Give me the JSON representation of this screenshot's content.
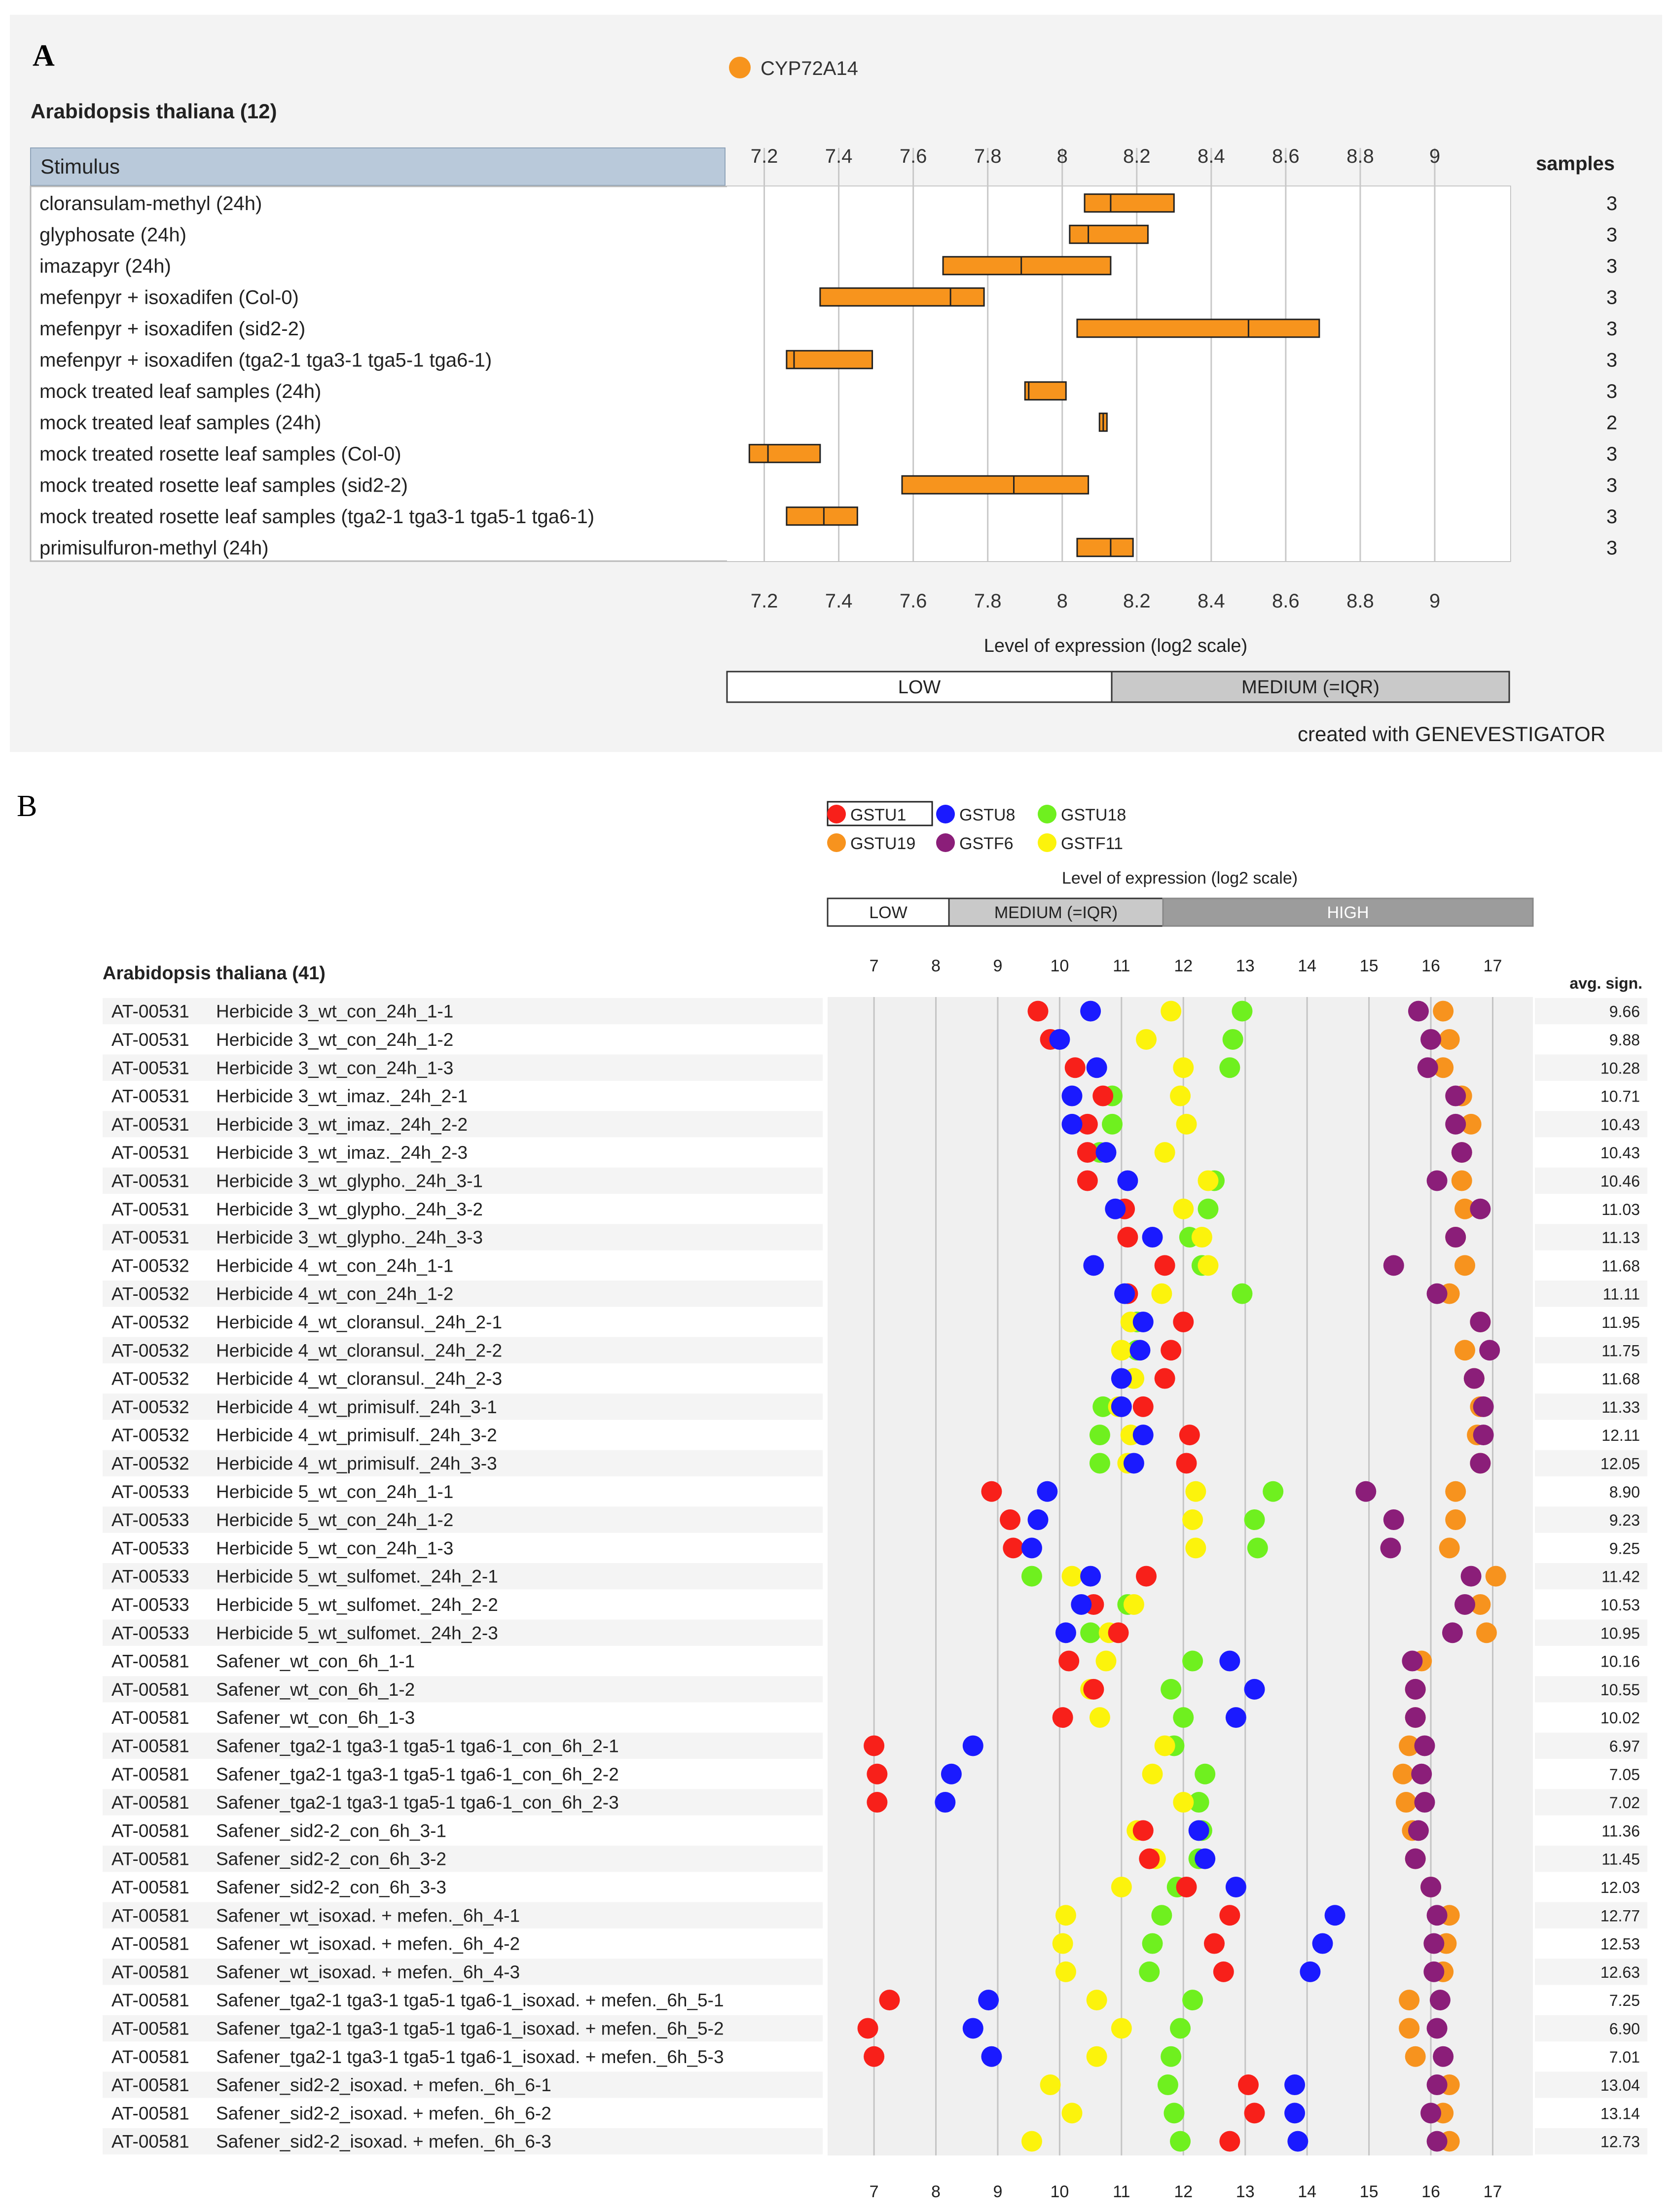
{
  "panel_a": {
    "letter": "A",
    "legend": {
      "label": "CYP72A14",
      "color": "#f7941d"
    },
    "species": "Arabidopsis thaliana (12)",
    "column_header": "Stimulus",
    "samples_header": "samples",
    "xlabel": "Level of expression (log2 scale)",
    "level_bar": {
      "low": "LOW",
      "medium": "MEDIUM (=IQR)"
    },
    "credit": "created with GENEVESTIGATOR"
  },
  "panel_b": {
    "letter": "B",
    "species": "Arabidopsis thaliana (41)",
    "avg_header": "avg. sign.",
    "xlabel": "Level of expression (log2 scale)",
    "level_bar": {
      "low": "LOW",
      "medium": "MEDIUM (=IQR)",
      "high": "HIGH"
    }
  },
  "chart_data": [
    {
      "type": "boxplot",
      "title": "CYP72A14",
      "xlabel": "Level of expression (log2 scale)",
      "xlim": [
        7.1,
        9.2
      ],
      "xticks": [
        "7.2",
        "7.4",
        "7.6",
        "7.8",
        "8",
        "8.2",
        "8.4",
        "8.6",
        "8.8",
        "9"
      ],
      "series_color": "#f7941d",
      "rows": [
        {
          "label": "cloransulam-methyl (24h)",
          "q1": 8.06,
          "median": 8.13,
          "q3": 8.3,
          "samples": "3"
        },
        {
          "label": "glyphosate (24h)",
          "q1": 8.02,
          "median": 8.07,
          "q3": 8.23,
          "samples": "3"
        },
        {
          "label": "imazapyr (24h)",
          "q1": 7.68,
          "median": 7.89,
          "q3": 8.13,
          "samples": "3"
        },
        {
          "label": "mefenpyr + isoxadifen (Col-0)",
          "q1": 7.35,
          "median": 7.7,
          "q3": 7.79,
          "samples": "3"
        },
        {
          "label": "mefenpyr + isoxadifen (sid2-2)",
          "q1": 8.04,
          "median": 8.5,
          "q3": 8.69,
          "samples": "3"
        },
        {
          "label": "mefenpyr + isoxadifen (tga2-1 tga3-1 tga5-1 tga6-1)",
          "q1": 7.26,
          "median": 7.28,
          "q3": 7.49,
          "samples": "3"
        },
        {
          "label": "mock treated leaf samples (24h)",
          "q1": 7.9,
          "median": 7.91,
          "q3": 8.01,
          "samples": "3"
        },
        {
          "label": "mock treated leaf samples (24h)",
          "q1": 8.1,
          "median": 8.11,
          "q3": 8.12,
          "samples": "2"
        },
        {
          "label": "mock treated rosette leaf samples (Col-0)",
          "q1": 7.16,
          "median": 7.21,
          "q3": 7.35,
          "samples": "3"
        },
        {
          "label": "mock treated rosette leaf samples (sid2-2)",
          "q1": 7.57,
          "median": 7.87,
          "q3": 8.07,
          "samples": "3"
        },
        {
          "label": "mock treated rosette leaf samples (tga2-1 tga3-1 tga5-1 tga6-1)",
          "q1": 7.26,
          "median": 7.36,
          "q3": 7.45,
          "samples": "3"
        },
        {
          "label": "primisulfuron-methyl (24h)",
          "q1": 8.04,
          "median": 8.13,
          "q3": 8.19,
          "samples": "3"
        }
      ]
    },
    {
      "type": "scatter",
      "xlabel": "Level of expression (log2 scale)",
      "xlim": [
        6.25,
        17.65
      ],
      "xticks": [
        "7",
        "8",
        "9",
        "10",
        "11",
        "12",
        "13",
        "14",
        "15",
        "16",
        "17"
      ],
      "series": [
        {
          "name": "GSTU1",
          "color": "#f8201a"
        },
        {
          "name": "GSTU8",
          "color": "#1a1aff"
        },
        {
          "name": "GSTU18",
          "color": "#6ff01f"
        },
        {
          "name": "GSTU19",
          "color": "#f7931e"
        },
        {
          "name": "GSTF6",
          "color": "#8b1e79"
        },
        {
          "name": "GSTF11",
          "color": "#fcf30c"
        }
      ],
      "rows": [
        {
          "id": "AT-00531",
          "name": "Herbicide 3_wt_con_24h_1-1",
          "avg": "9.66",
          "values": [
            9.65,
            10.5,
            12.95,
            16.2,
            15.8,
            11.8
          ]
        },
        {
          "id": "AT-00531",
          "name": "Herbicide 3_wt_con_24h_1-2",
          "avg": "9.88",
          "values": [
            9.85,
            10.0,
            12.8,
            16.3,
            16.0,
            11.4
          ]
        },
        {
          "id": "AT-00531",
          "name": "Herbicide 3_wt_con_24h_1-3",
          "avg": "10.28",
          "values": [
            10.25,
            10.6,
            12.75,
            16.2,
            15.95,
            12.0
          ]
        },
        {
          "id": "AT-00531",
          "name": "Herbicide 3_wt_imaz._24h_2-1",
          "avg": "10.71",
          "values": [
            10.7,
            10.2,
            10.85,
            16.5,
            16.4,
            11.95
          ]
        },
        {
          "id": "AT-00531",
          "name": "Herbicide 3_wt_imaz._24h_2-2",
          "avg": "10.43",
          "values": [
            10.45,
            10.2,
            10.85,
            16.65,
            16.4,
            12.05
          ]
        },
        {
          "id": "AT-00531",
          "name": "Herbicide 3_wt_imaz._24h_2-3",
          "avg": "10.43",
          "values": [
            10.45,
            10.75,
            10.65,
            16.5,
            16.5,
            11.7
          ]
        },
        {
          "id": "AT-00531",
          "name": "Herbicide 3_wt_glypho._24h_3-1",
          "avg": "10.46",
          "values": [
            10.45,
            11.1,
            12.5,
            16.5,
            16.1,
            12.4
          ]
        },
        {
          "id": "AT-00531",
          "name": "Herbicide 3_wt_glypho._24h_3-2",
          "avg": "11.03",
          "values": [
            11.05,
            10.9,
            12.4,
            16.55,
            16.8,
            12.0
          ]
        },
        {
          "id": "AT-00531",
          "name": "Herbicide 3_wt_glypho._24h_3-3",
          "avg": "11.13",
          "values": [
            11.1,
            11.5,
            12.1,
            16.4,
            16.4,
            12.3
          ]
        },
        {
          "id": "AT-00532",
          "name": "Herbicide 4_wt_con_24h_1-1",
          "avg": "11.68",
          "values": [
            11.7,
            10.55,
            12.3,
            16.55,
            15.4,
            12.4
          ]
        },
        {
          "id": "AT-00532",
          "name": "Herbicide 4_wt_con_24h_1-2",
          "avg": "11.11",
          "values": [
            11.1,
            11.05,
            12.95,
            16.3,
            16.1,
            11.65
          ]
        },
        {
          "id": "AT-00532",
          "name": "Herbicide 4_wt_cloransul._24h_2-1",
          "avg": "11.95",
          "values": [
            12.0,
            11.35,
            11.25,
            16.8,
            16.8,
            11.15
          ]
        },
        {
          "id": "AT-00532",
          "name": "Herbicide 4_wt_cloransul._24h_2-2",
          "avg": "11.75",
          "values": [
            11.8,
            11.3,
            11.25,
            16.55,
            16.95,
            11.0
          ]
        },
        {
          "id": "AT-00532",
          "name": "Herbicide 4_wt_cloransul._24h_2-3",
          "avg": "11.68",
          "values": [
            11.7,
            11.0,
            11.2,
            16.7,
            16.7,
            11.2
          ]
        },
        {
          "id": "AT-00532",
          "name": "Herbicide 4_wt_primisulf._24h_3-1",
          "avg": "11.33",
          "values": [
            11.35,
            11.0,
            10.7,
            16.8,
            16.85,
            10.95
          ]
        },
        {
          "id": "AT-00532",
          "name": "Herbicide 4_wt_primisulf._24h_3-2",
          "avg": "12.11",
          "values": [
            12.1,
            11.35,
            10.65,
            16.75,
            16.85,
            11.15
          ]
        },
        {
          "id": "AT-00532",
          "name": "Herbicide 4_wt_primisulf._24h_3-3",
          "avg": "12.05",
          "values": [
            12.05,
            11.2,
            10.65,
            16.8,
            16.8,
            11.1
          ]
        },
        {
          "id": "AT-00533",
          "name": "Herbicide 5_wt_con_24h_1-1",
          "avg": "8.90",
          "values": [
            8.9,
            9.8,
            13.45,
            16.4,
            14.95,
            12.2
          ]
        },
        {
          "id": "AT-00533",
          "name": "Herbicide 5_wt_con_24h_1-2",
          "avg": "9.23",
          "values": [
            9.2,
            9.65,
            13.15,
            16.4,
            15.4,
            12.15
          ]
        },
        {
          "id": "AT-00533",
          "name": "Herbicide 5_wt_con_24h_1-3",
          "avg": "9.25",
          "values": [
            9.25,
            9.55,
            13.2,
            16.3,
            15.35,
            12.2
          ]
        },
        {
          "id": "AT-00533",
          "name": "Herbicide 5_wt_sulfomet._24h_2-1",
          "avg": "11.42",
          "values": [
            11.4,
            10.5,
            9.55,
            17.05,
            16.65,
            10.2
          ]
        },
        {
          "id": "AT-00533",
          "name": "Herbicide 5_wt_sulfomet._24h_2-2",
          "avg": "10.53",
          "values": [
            10.55,
            10.35,
            11.1,
            16.8,
            16.55,
            11.2
          ]
        },
        {
          "id": "AT-00533",
          "name": "Herbicide 5_wt_sulfomet._24h_2-3",
          "avg": "10.95",
          "values": [
            10.95,
            10.1,
            10.5,
            16.9,
            16.35,
            10.8
          ]
        },
        {
          "id": "AT-00581",
          "name": "Safener_wt_con_6h_1-1",
          "avg": "10.16",
          "values": [
            10.15,
            12.75,
            12.15,
            15.85,
            15.7,
            10.75
          ]
        },
        {
          "id": "AT-00581",
          "name": "Safener_wt_con_6h_1-2",
          "avg": "10.55",
          "values": [
            10.55,
            13.15,
            11.8,
            15.75,
            15.75,
            10.5
          ]
        },
        {
          "id": "AT-00581",
          "name": "Safener_wt_con_6h_1-3",
          "avg": "10.02",
          "values": [
            10.05,
            12.85,
            12.0,
            15.75,
            15.75,
            10.65
          ]
        },
        {
          "id": "AT-00581",
          "name": "Safener_tga2-1 tga3-1 tga5-1 tga6-1_con_6h_2-1",
          "avg": "6.97",
          "values": [
            7.0,
            8.6,
            11.85,
            15.65,
            15.9,
            11.7
          ]
        },
        {
          "id": "AT-00581",
          "name": "Safener_tga2-1 tga3-1 tga5-1 tga6-1_con_6h_2-2",
          "avg": "7.05",
          "values": [
            7.05,
            8.25,
            12.35,
            15.55,
            15.85,
            11.5
          ]
        },
        {
          "id": "AT-00581",
          "name": "Safener_tga2-1 tga3-1 tga5-1 tga6-1_con_6h_2-3",
          "avg": "7.02",
          "values": [
            7.05,
            8.15,
            12.25,
            15.6,
            15.9,
            12.0
          ]
        },
        {
          "id": "AT-00581",
          "name": "Safener_sid2-2_con_6h_3-1",
          "avg": "11.36",
          "values": [
            11.35,
            12.25,
            12.3,
            15.7,
            15.8,
            11.25
          ]
        },
        {
          "id": "AT-00581",
          "name": "Safener_sid2-2_con_6h_3-2",
          "avg": "11.45",
          "values": [
            11.45,
            12.35,
            12.25,
            15.75,
            15.75,
            11.55
          ]
        },
        {
          "id": "AT-00581",
          "name": "Safener_sid2-2_con_6h_3-3",
          "avg": "12.03",
          "values": [
            12.05,
            12.85,
            11.9,
            16.0,
            16.0,
            11.0
          ]
        },
        {
          "id": "AT-00581",
          "name": "Safener_wt_isoxad. + mefen._6h_4-1",
          "avg": "12.77",
          "values": [
            12.75,
            14.45,
            11.65,
            16.3,
            16.1,
            10.1
          ]
        },
        {
          "id": "AT-00581",
          "name": "Safener_wt_isoxad. + mefen._6h_4-2",
          "avg": "12.53",
          "values": [
            12.5,
            14.25,
            11.5,
            16.25,
            16.05,
            10.05
          ]
        },
        {
          "id": "AT-00581",
          "name": "Safener_wt_isoxad. + mefen._6h_4-3",
          "avg": "12.63",
          "values": [
            12.65,
            14.05,
            11.45,
            16.2,
            16.05,
            10.1
          ]
        },
        {
          "id": "AT-00581",
          "name": "Safener_tga2-1 tga3-1 tga5-1 tga6-1_isoxad. + mefen._6h_5-1",
          "avg": "7.25",
          "values": [
            7.25,
            8.85,
            12.15,
            15.65,
            16.15,
            10.6
          ]
        },
        {
          "id": "AT-00581",
          "name": "Safener_tga2-1 tga3-1 tga5-1 tga6-1_isoxad. + mefen._6h_5-2",
          "avg": "6.90",
          "values": [
            6.9,
            8.6,
            11.95,
            15.65,
            16.1,
            11.0
          ]
        },
        {
          "id": "AT-00581",
          "name": "Safener_tga2-1 tga3-1 tga5-1 tga6-1_isoxad. + mefen._6h_5-3",
          "avg": "7.01",
          "values": [
            7.0,
            8.9,
            11.8,
            15.75,
            16.2,
            10.6
          ]
        },
        {
          "id": "AT-00581",
          "name": "Safener_sid2-2_isoxad. + mefen._6h_6-1",
          "avg": "13.04",
          "values": [
            13.05,
            13.8,
            11.75,
            16.3,
            16.1,
            9.85
          ]
        },
        {
          "id": "AT-00581",
          "name": "Safener_sid2-2_isoxad. + mefen._6h_6-2",
          "avg": "13.14",
          "values": [
            13.15,
            13.8,
            11.85,
            16.2,
            16.0,
            10.2
          ]
        },
        {
          "id": "AT-00581",
          "name": "Safener_sid2-2_isoxad. + mefen._6h_6-3",
          "avg": "12.73",
          "values": [
            12.75,
            13.85,
            11.95,
            16.3,
            16.1,
            9.55
          ]
        }
      ]
    }
  ]
}
